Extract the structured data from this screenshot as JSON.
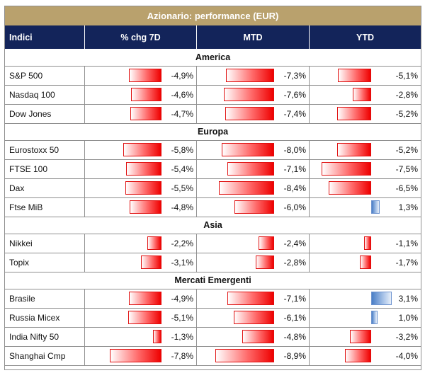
{
  "title": "Azionario: performance (EUR)",
  "headers": {
    "index": "Indici",
    "chg7d": "% chg 7D",
    "mtd": "MTD",
    "ytd": "YTD"
  },
  "colors": {
    "title_bg": "#b9a16d",
    "header_bg": "#13245a",
    "negative_bar": "#ee0000",
    "positive_bar": "#4a7ec6"
  },
  "sections": [
    {
      "name": "America",
      "rows": [
        {
          "name": "S&P 500",
          "chg7d": "-4,9%",
          "mtd": "-7,3%",
          "ytd": "-5,1%"
        },
        {
          "name": "Nasdaq 100",
          "chg7d": "-4,6%",
          "mtd": "-7,6%",
          "ytd": "-2,8%"
        },
        {
          "name": "Dow Jones",
          "chg7d": "-4,7%",
          "mtd": "-7,4%",
          "ytd": "-5,2%"
        }
      ]
    },
    {
      "name": "Europa",
      "rows": [
        {
          "name": "Eurostoxx 50",
          "chg7d": "-5,8%",
          "mtd": "-8,0%",
          "ytd": "-5,2%"
        },
        {
          "name": "FTSE 100",
          "chg7d": "-5,4%",
          "mtd": "-7,1%",
          "ytd": "-7,5%"
        },
        {
          "name": "Dax",
          "chg7d": "-5,5%",
          "mtd": "-8,4%",
          "ytd": "-6,5%"
        },
        {
          "name": "Ftse MiB",
          "chg7d": "-4,8%",
          "mtd": "-6,0%",
          "ytd": "1,3%"
        }
      ]
    },
    {
      "name": "Asia",
      "rows": [
        {
          "name": "Nikkei",
          "chg7d": "-2,2%",
          "mtd": "-2,4%",
          "ytd": "-1,1%"
        },
        {
          "name": "Topix",
          "chg7d": "-3,1%",
          "mtd": "-2,8%",
          "ytd": "-1,7%"
        }
      ]
    },
    {
      "name": "Mercati Emergenti",
      "rows": [
        {
          "name": "Brasile",
          "chg7d": "-4,9%",
          "mtd": "-7,1%",
          "ytd": "3,1%"
        },
        {
          "name": "Russia Micex",
          "chg7d": "-5,1%",
          "mtd": "-6,1%",
          "ytd": "1,0%"
        },
        {
          "name": "India Nifty 50",
          "chg7d": "-1,3%",
          "mtd": "-4,8%",
          "ytd": "-3,2%"
        },
        {
          "name": "Shanghai Cmp",
          "chg7d": "-7,8%",
          "mtd": "-8,9%",
          "ytd": "-4,0%"
        }
      ]
    }
  ]
}
